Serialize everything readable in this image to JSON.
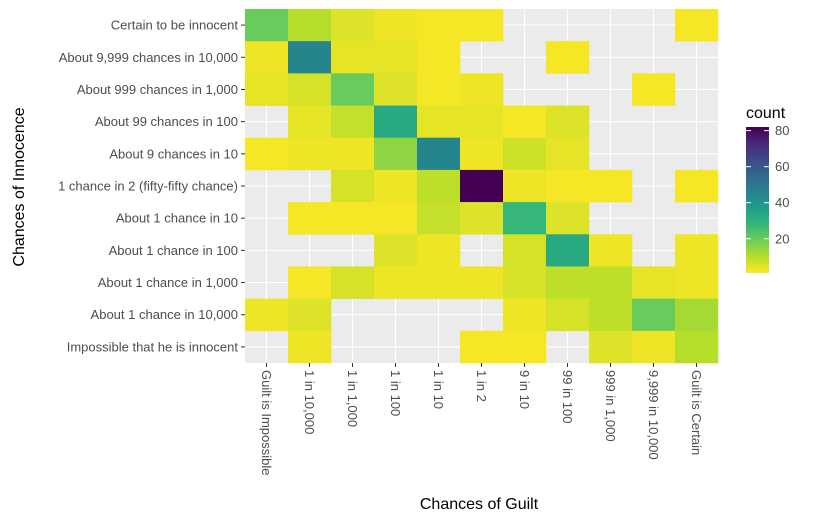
{
  "chart_data": {
    "type": "heatmap",
    "xlabel": "Chances of Guilt",
    "ylabel": "Chances of Innocence",
    "x_categories": [
      "Guilt is Impossible",
      "1 in 10,000",
      "1 in 1,000",
      "1 in 100",
      "1 in 10",
      "1 in 2",
      "9 in 10",
      "99 in 100",
      "999 in 1,000",
      "9,999 in 10,000",
      "Guilt is Certain"
    ],
    "y_categories": [
      "Certain to be innocent",
      "About 9,999 chances in 10,000",
      "About 999 chances in 1,000",
      "About 99 chances in 100",
      "About 9 chances in 10",
      "1 chance in 2 (fifty-fifty chance)",
      "About 1 chance in 10",
      "About 1 chance in 100",
      "About 1 chance in 1,000",
      "About 1 chance in 10,000",
      "Impossible that he is innocent"
    ],
    "values": [
      [
        20,
        10,
        5,
        3,
        2,
        2,
        null,
        null,
        null,
        null,
        2
      ],
      [
        3,
        45,
        4,
        4,
        2,
        null,
        null,
        2,
        null,
        null,
        null
      ],
      [
        4,
        6,
        20,
        5,
        2,
        3,
        null,
        null,
        null,
        2,
        null
      ],
      [
        null,
        4,
        8,
        33,
        4,
        4,
        2,
        5,
        null,
        null,
        null
      ],
      [
        2,
        3,
        3,
        15,
        45,
        3,
        7,
        4,
        null,
        null,
        null
      ],
      [
        null,
        null,
        6,
        3,
        9,
        82,
        3,
        2,
        2,
        null,
        2
      ],
      [
        null,
        2,
        2,
        2,
        8,
        5,
        28,
        5,
        null,
        null,
        null
      ],
      [
        null,
        null,
        null,
        5,
        3,
        null,
        6,
        33,
        3,
        null,
        3
      ],
      [
        null,
        2,
        6,
        3,
        3,
        3,
        6,
        9,
        9,
        4,
        3
      ],
      [
        3,
        5,
        null,
        null,
        null,
        null,
        3,
        6,
        9,
        20,
        12
      ],
      [
        null,
        3,
        null,
        null,
        null,
        2,
        2,
        null,
        5,
        3,
        10
      ]
    ],
    "legend": {
      "title": "count",
      "breaks": [
        20,
        40,
        60,
        80
      ],
      "break_labels": [
        "20",
        "40",
        "60",
        "80"
      ],
      "min": 1,
      "max": 82,
      "palette": [
        "#fde725",
        "#b5de2b",
        "#6ece58",
        "#35b779",
        "#1f9e89",
        "#26828e",
        "#31688e",
        "#3e4989",
        "#482878",
        "#440154"
      ]
    },
    "panel_background": "#ebebeb",
    "grid_color": "#ffffff"
  }
}
